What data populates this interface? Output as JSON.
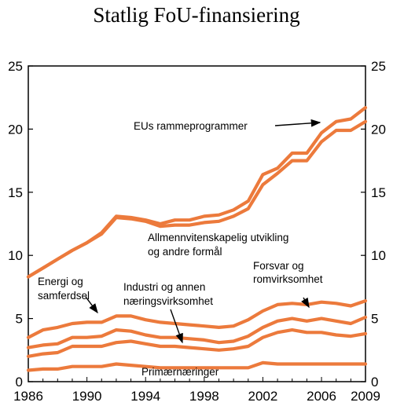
{
  "chart_data": {
    "type": "line",
    "title": "Statlig  FoU-finansiering",
    "xlabel": "",
    "ylabel": "",
    "xlim": [
      1986,
      2009
    ],
    "ylim": [
      0,
      25
    ],
    "yticks": [
      0,
      5,
      10,
      15,
      20,
      25
    ],
    "xticks": [
      1986,
      1990,
      1994,
      1998,
      2002,
      2006,
      2009
    ],
    "grid": false,
    "line_color": "#EC7A3C",
    "x": [
      1986,
      1987,
      1988,
      1989,
      1990,
      1991,
      1992,
      1993,
      1994,
      1995,
      1996,
      1997,
      1998,
      1999,
      2000,
      2001,
      2002,
      2003,
      2004,
      2005,
      2006,
      2007,
      2008,
      2009
    ],
    "series": [
      {
        "values": [
          0.9,
          1.0,
          1.0,
          1.2,
          1.2,
          1.2,
          1.4,
          1.3,
          1.2,
          1.1,
          1.1,
          1.1,
          1.1,
          1.1,
          1.1,
          1.1,
          1.5,
          1.4,
          1.4,
          1.4,
          1.4,
          1.4,
          1.4,
          1.4
        ]
      },
      {
        "values": [
          2.0,
          2.2,
          2.3,
          2.8,
          2.8,
          2.8,
          3.1,
          3.2,
          3.0,
          2.8,
          2.8,
          2.7,
          2.6,
          2.5,
          2.6,
          2.8,
          3.5,
          3.9,
          4.1,
          3.9,
          3.9,
          3.7,
          3.6,
          3.8
        ]
      },
      {
        "values": [
          2.7,
          2.9,
          3.0,
          3.5,
          3.5,
          3.6,
          4.1,
          4.0,
          3.7,
          3.5,
          3.5,
          3.4,
          3.3,
          3.1,
          3.2,
          3.6,
          4.3,
          4.8,
          5.0,
          4.8,
          5.0,
          4.8,
          4.6,
          5.1
        ]
      },
      {
        "values": [
          3.5,
          4.1,
          4.3,
          4.6,
          4.7,
          4.7,
          5.2,
          5.2,
          4.9,
          4.7,
          4.6,
          4.5,
          4.4,
          4.3,
          4.4,
          4.9,
          5.6,
          6.1,
          6.2,
          6.1,
          6.3,
          6.2,
          6.0,
          6.4
        ]
      },
      {
        "values": [
          8.3,
          9.0,
          9.7,
          10.4,
          11.0,
          11.7,
          13.0,
          12.9,
          12.7,
          12.3,
          12.4,
          12.4,
          12.6,
          12.7,
          13.1,
          13.7,
          15.6,
          16.5,
          17.5,
          17.5,
          19.0,
          19.9,
          19.9,
          20.6
        ]
      },
      {
        "values": [
          8.3,
          9.0,
          9.7,
          10.4,
          11.0,
          11.8,
          13.1,
          13.0,
          12.8,
          12.5,
          12.8,
          12.8,
          13.1,
          13.2,
          13.6,
          14.3,
          16.4,
          16.9,
          18.1,
          18.1,
          19.7,
          20.6,
          20.8,
          21.7
        ]
      }
    ],
    "annotations": [
      {
        "lines": [
          "EUs rammeprogrammer"
        ]
      },
      {
        "lines": [
          "Allmennvitenskapelig utvikling",
          "og andre formål"
        ]
      },
      {
        "lines": [
          "Forsvar og",
          "romvirksomhet"
        ]
      },
      {
        "lines": [
          "Energi og",
          "samferdsel"
        ]
      },
      {
        "lines": [
          "Industri og annen",
          "næringsvirksomhet"
        ]
      },
      {
        "lines": [
          "Primærnæringer"
        ]
      }
    ]
  }
}
